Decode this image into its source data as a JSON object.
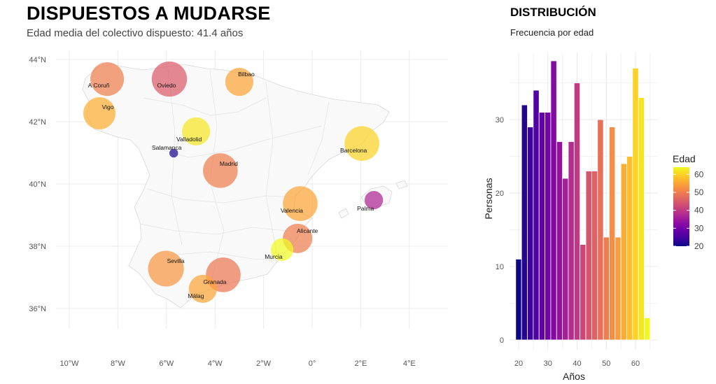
{
  "map": {
    "title": "DISPUESTOS A MUDARSE",
    "subtitle": "Edad media del colectivo dispuesto: 41.4 años"
  },
  "histogram": {
    "title": "DISTRIBUCIÓN",
    "subtitle": "Frecuencia por edad"
  },
  "chart_data": [
    {
      "type": "scatter",
      "subtype": "bubble-map",
      "title": "DISPUESTOS A MUDARSE",
      "subtitle": "Edad media del colectivo dispuesto: 41.4 años",
      "x_ticks": [
        "10°W",
        "8°W",
        "6°W",
        "4°W",
        "2°W",
        "0°",
        "2°E",
        "4°E"
      ],
      "x_tick_values": [
        -10,
        -8,
        -6,
        -4,
        -2,
        0,
        2,
        4
      ],
      "y_ticks": [
        "36°N",
        "38°N",
        "40°N",
        "42°N",
        "44°N"
      ],
      "y_tick_values": [
        36,
        38,
        40,
        42,
        44
      ],
      "xlim": [
        -10.5,
        5.5
      ],
      "ylim": [
        35.3,
        44.3
      ],
      "grid": true,
      "points": [
        {
          "label": "A Coruñ",
          "lon": -8.44,
          "lat": 43.37,
          "n": 60,
          "edad": 50
        },
        {
          "label": "Oviedo",
          "lon": -5.88,
          "lat": 43.37,
          "n": 66,
          "edad": 45
        },
        {
          "label": "Bilbao",
          "lon": -3.0,
          "lat": 43.28,
          "n": 42,
          "edad": 55
        },
        {
          "label": "Vigo",
          "lon": -8.76,
          "lat": 42.27,
          "n": 55,
          "edad": 56
        },
        {
          "label": "Valladolid",
          "lon": -4.78,
          "lat": 41.69,
          "n": 42,
          "edad": 62
        },
        {
          "label": "Salamanca",
          "lon": -5.7,
          "lat": 40.99,
          "n": 4,
          "edad": 21
        },
        {
          "label": "Madrid",
          "lon": -3.78,
          "lat": 40.43,
          "n": 64,
          "edad": 50
        },
        {
          "label": "Barcelona",
          "lon": 2.05,
          "lat": 41.3,
          "n": 64,
          "edad": 60
        },
        {
          "label": "Palma",
          "lon": 2.54,
          "lat": 39.48,
          "n": 18,
          "edad": 37
        },
        {
          "label": "Valencia",
          "lon": -0.49,
          "lat": 39.37,
          "n": 64,
          "edad": 55
        },
        {
          "label": "Alicante",
          "lon": -0.6,
          "lat": 38.25,
          "n": 46,
          "edad": 50
        },
        {
          "label": "Murcia",
          "lon": -1.24,
          "lat": 37.89,
          "n": 27,
          "edad": 64
        },
        {
          "label": "Sevilla",
          "lon": -6.02,
          "lat": 37.28,
          "n": 68,
          "edad": 53
        },
        {
          "label": "Granada",
          "lon": -3.66,
          "lat": 37.08,
          "n": 64,
          "edad": 49
        },
        {
          "label": "Málag",
          "lon": -4.5,
          "lat": 36.63,
          "n": 42,
          "edad": 55
        }
      ]
    },
    {
      "type": "bar",
      "subtype": "histogram",
      "title": "DISTRIBUCIÓN",
      "subtitle": "Frecuencia por edad",
      "xlabel": "Años",
      "ylabel": "Personas",
      "x_ticks": [
        "20",
        "30",
        "40",
        "50",
        "60"
      ],
      "x_tick_values": [
        20,
        30,
        40,
        50,
        60
      ],
      "y_ticks": [
        "0",
        "10",
        "20",
        "30"
      ],
      "y_tick_values": [
        0,
        10,
        20,
        30
      ],
      "bin_width": 2,
      "x": [
        20,
        22,
        24,
        26,
        28,
        30,
        32,
        34,
        36,
        38,
        40,
        42,
        44,
        46,
        48,
        50,
        52,
        54,
        56,
        58,
        60,
        62,
        64
      ],
      "values": [
        11,
        32,
        29,
        34,
        31,
        31,
        38,
        27,
        22,
        27,
        35,
        13,
        23,
        23,
        30,
        14,
        29,
        14,
        24,
        25,
        37,
        33,
        3
      ],
      "grid": true,
      "legend": {
        "title": "Edad",
        "ticks": [
          "20",
          "30",
          "40",
          "50",
          "60"
        ],
        "tick_values": [
          20,
          30,
          40,
          50,
          60
        ],
        "range": [
          20,
          64
        ],
        "placement": "right",
        "palette": "plasma"
      }
    }
  ]
}
